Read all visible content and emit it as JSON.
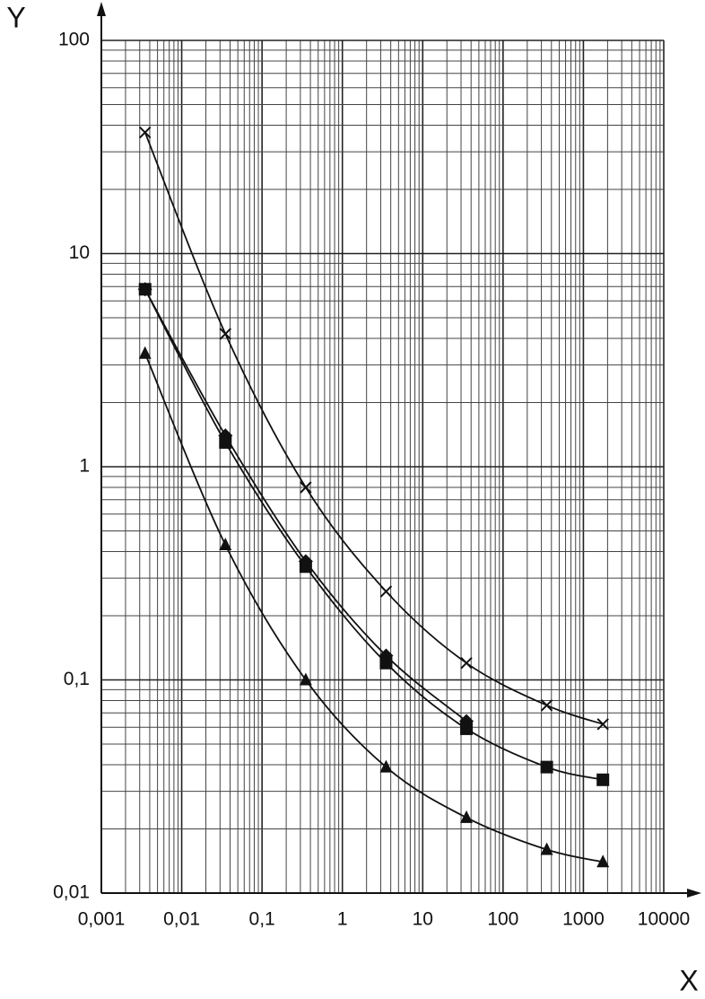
{
  "chart_data": {
    "type": "line",
    "x_label": "X",
    "y_label": "Y",
    "xscale": "log",
    "yscale": "log",
    "grid": true,
    "minor_grid": true,
    "xlim": [
      0.001,
      10000
    ],
    "ylim": [
      0.01,
      100
    ],
    "xticks": [
      {
        "value": 0.001,
        "label": "0,001"
      },
      {
        "value": 0.01,
        "label": "0,01"
      },
      {
        "value": 0.1,
        "label": "0,1"
      },
      1,
      10,
      100,
      1000,
      10000
    ],
    "yticks": [
      {
        "value": 0.01,
        "label": "0,01"
      },
      {
        "value": 0.1,
        "label": "0,1"
      },
      1,
      10,
      100
    ],
    "x": [
      0.0035,
      0.035,
      0.35,
      3.5,
      35,
      350,
      1750
    ],
    "series": [
      {
        "marker": "x",
        "color": "#111111",
        "values": [
          37,
          4.2,
          0.8,
          0.26,
          0.12,
          0.076,
          0.062
        ]
      },
      {
        "marker": "square",
        "color": "#111111",
        "values": [
          6.8,
          1.3,
          0.34,
          0.12,
          0.059,
          0.039,
          0.034
        ]
      },
      {
        "marker": "diamond",
        "color": "#111111",
        "values": [
          6.8,
          1.4,
          0.36,
          0.13,
          0.064,
          null,
          null
        ]
      },
      {
        "marker": "triangle",
        "color": "#111111",
        "values": [
          3.4,
          0.43,
          0.1,
          0.039,
          0.0226,
          0.016,
          0.014
        ]
      }
    ]
  }
}
